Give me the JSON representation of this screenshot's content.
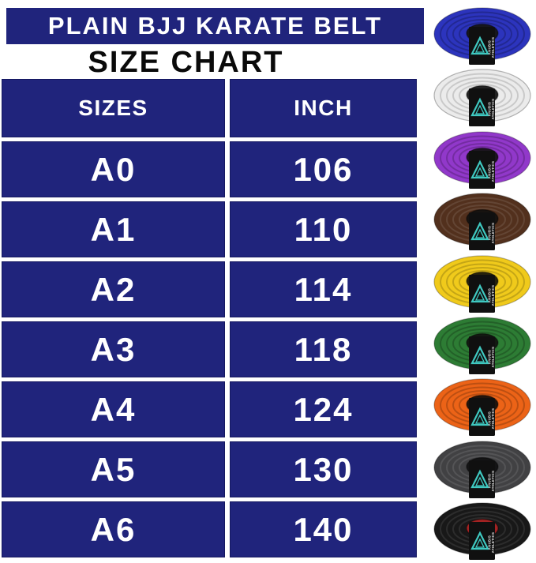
{
  "header": {
    "title": "PLAIN BJJ KARATE BELT",
    "subtitle": "SIZE CHART"
  },
  "size_chart": {
    "columns": [
      "SIZES",
      "INCH"
    ],
    "rows": [
      {
        "size": "A0",
        "inch": "106"
      },
      {
        "size": "A1",
        "inch": "110"
      },
      {
        "size": "A2",
        "inch": "114"
      },
      {
        "size": "A3",
        "inch": "118"
      },
      {
        "size": "A4",
        "inch": "124"
      },
      {
        "size": "A5",
        "inch": "130"
      },
      {
        "size": "A6",
        "inch": "140"
      }
    ]
  },
  "chart_data": {
    "type": "table",
    "title": "SIZE CHART",
    "columns": [
      "SIZES",
      "INCH"
    ],
    "rows": [
      [
        "A0",
        106
      ],
      [
        "A1",
        110
      ],
      [
        "A2",
        114
      ],
      [
        "A3",
        118
      ],
      [
        "A4",
        124
      ],
      [
        "A5",
        130
      ],
      [
        "A6",
        140
      ]
    ]
  },
  "belts": [
    {
      "name": "blue",
      "color": "#2c34bd",
      "hole": "#17171d",
      "stripe": "rgba(0,0,0,0.22)"
    },
    {
      "name": "white",
      "color": "#ebebeb",
      "hole": "#232323",
      "stripe": "rgba(0,0,0,0.14)"
    },
    {
      "name": "purple",
      "color": "#9138ca",
      "hole": "#1c151f",
      "stripe": "rgba(0,0,0,0.20)"
    },
    {
      "name": "brown",
      "color": "#52301d",
      "hole": "#171310",
      "stripe": "rgba(255,255,255,0.10)"
    },
    {
      "name": "yellow",
      "color": "#f0ca1b",
      "hole": "#27220d",
      "stripe": "rgba(0,0,0,0.18)"
    },
    {
      "name": "green",
      "color": "#2d7c34",
      "hole": "#131a12",
      "stripe": "rgba(0,0,0,0.22)"
    },
    {
      "name": "orange",
      "color": "#ec6317",
      "hole": "#21150d",
      "stripe": "rgba(0,0,0,0.20)"
    },
    {
      "name": "gray",
      "color": "#414143",
      "hole": "#141415",
      "stripe": "rgba(255,255,255,0.10)"
    },
    {
      "name": "black",
      "color": "#181818",
      "hole": "#a32323",
      "stripe": "rgba(255,255,255,0.09)"
    }
  ],
  "brand_label": {
    "text_line1": "ANUBIS",
    "text_line2": "ATHLETICS",
    "patch_color": "#101010",
    "logo_color": "#3fc9c1",
    "text_color": "#e8e8e8"
  },
  "colors": {
    "table_navy": "#20247c",
    "page_bg": "#ffffff",
    "cell_text": "#ffffff",
    "subtitle_text": "#0a0a0a"
  }
}
